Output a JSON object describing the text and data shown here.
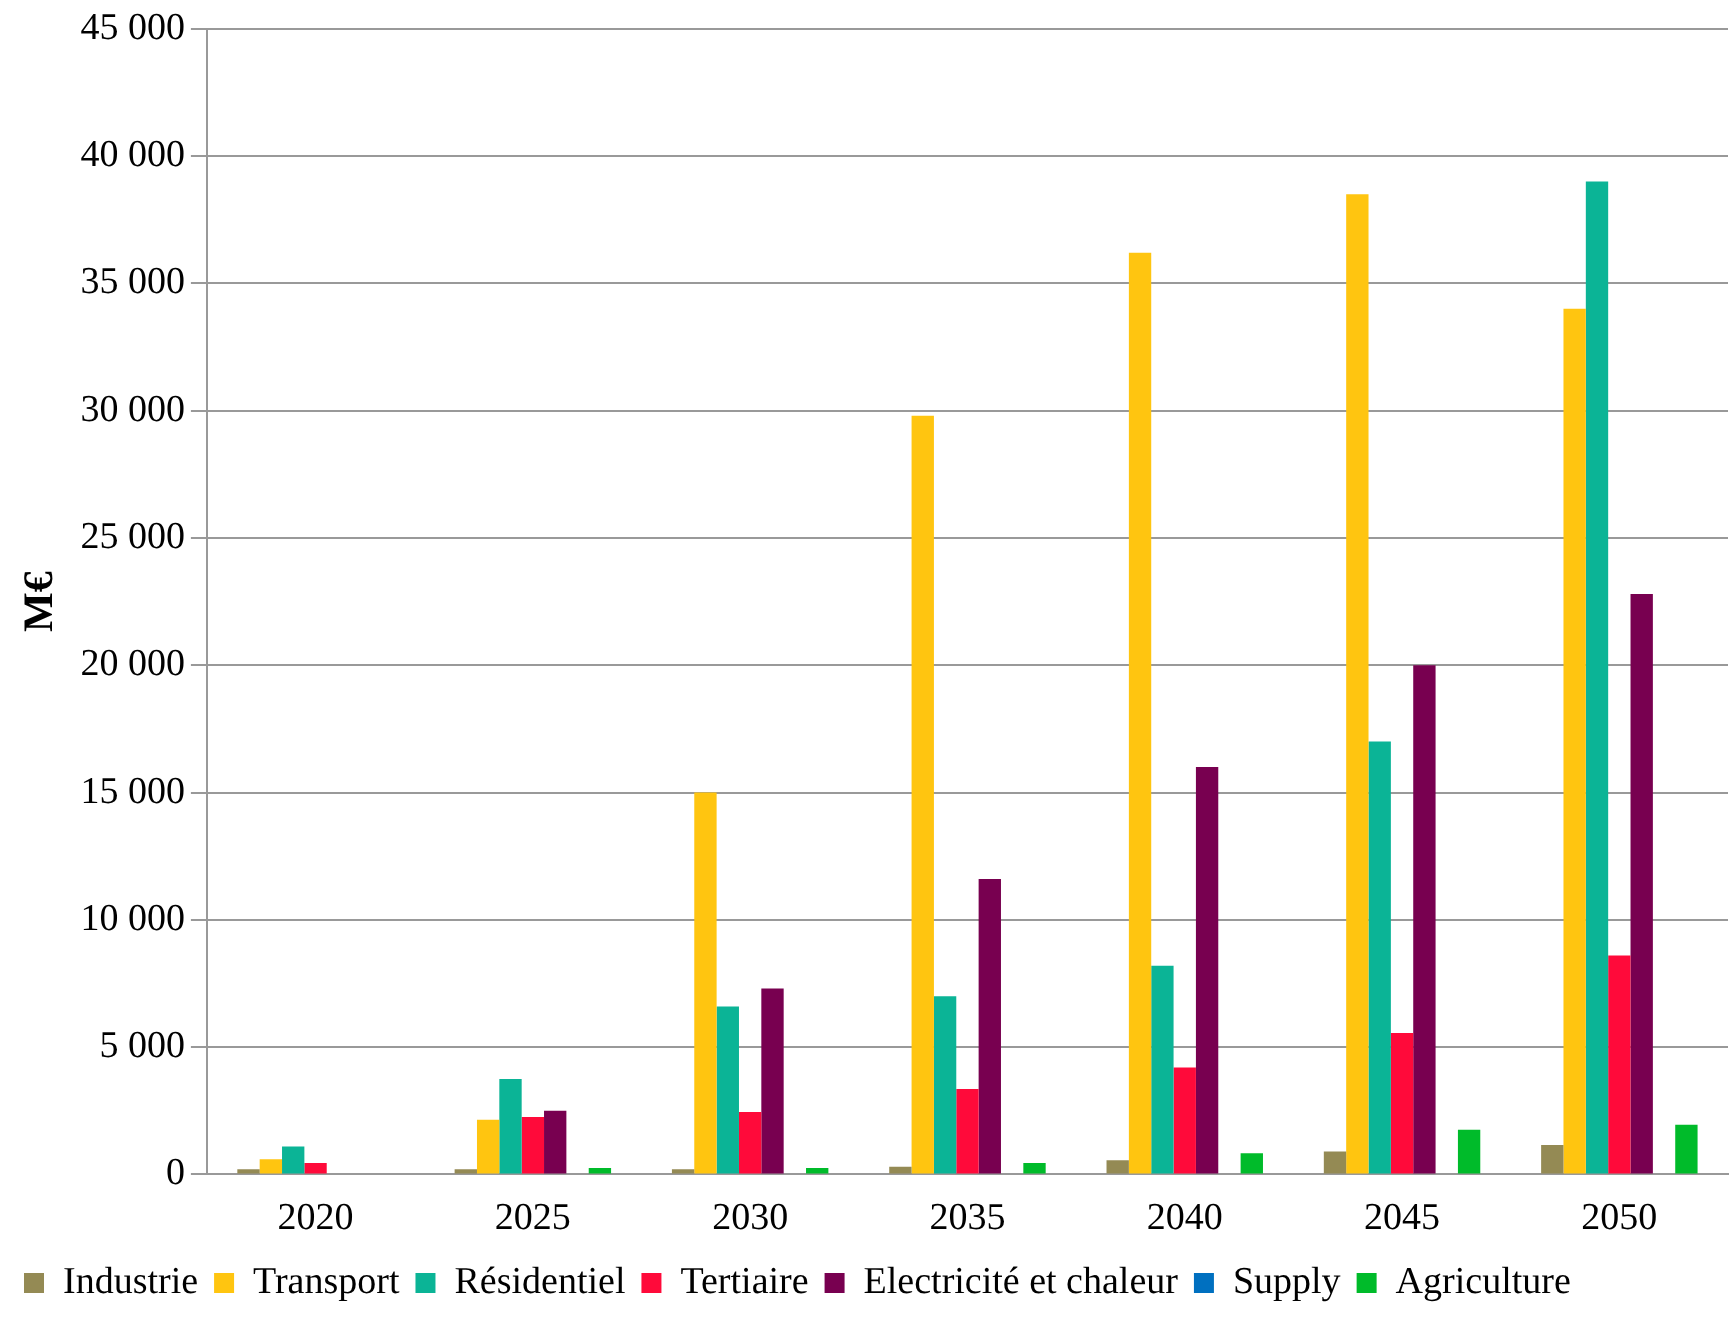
{
  "chart_data": {
    "type": "bar",
    "ylabel": "M€",
    "categories": [
      "2020",
      "2025",
      "2030",
      "2035",
      "2040",
      "2045",
      "2050"
    ],
    "series": [
      {
        "name": "Industrie",
        "color": "#948a54",
        "values": [
          200,
          200,
          200,
          300,
          560,
          900,
          1150
        ]
      },
      {
        "name": "Transport",
        "color": "#ffc510",
        "values": [
          600,
          2150,
          15000,
          29800,
          36200,
          38500,
          34000
        ]
      },
      {
        "name": "Résidentiel",
        "color": "#0bb496",
        "values": [
          1100,
          3750,
          6600,
          7000,
          8200,
          17000,
          39000
        ]
      },
      {
        "name": "Tertiaire",
        "color": "#ff0a3a",
        "values": [
          450,
          2250,
          2450,
          3350,
          4200,
          5550,
          8600
        ]
      },
      {
        "name": "Electricité et chaleur",
        "color": "#780050",
        "values": [
          0,
          2500,
          7300,
          11600,
          16000,
          20000,
          22800
        ]
      },
      {
        "name": "Supply",
        "color": "#0070c0",
        "values": [
          0,
          0,
          0,
          0,
          0,
          0,
          0
        ]
      },
      {
        "name": "Agriculture",
        "color": "#00bb2a",
        "values": [
          0,
          250,
          250,
          450,
          830,
          1750,
          1950
        ]
      }
    ],
    "ylim": [
      0,
      45000
    ],
    "yticks": [
      0,
      5000,
      10000,
      15000,
      20000,
      25000,
      30000,
      35000,
      40000,
      45000
    ],
    "grid": "y",
    "legend": "bottom"
  }
}
